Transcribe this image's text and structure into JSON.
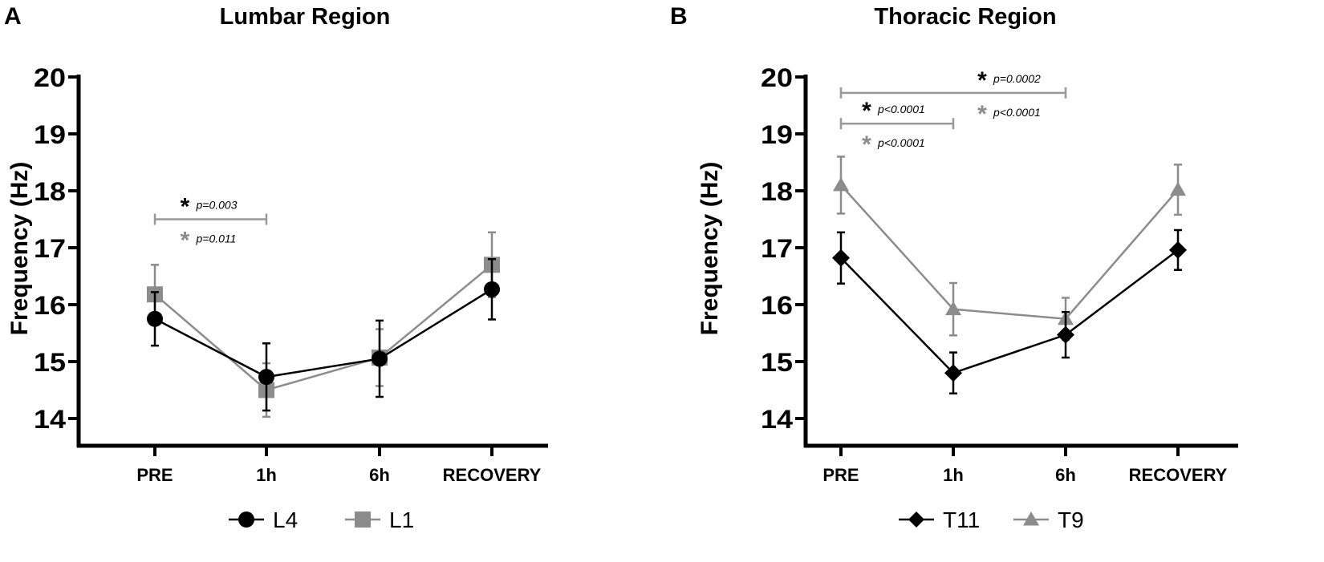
{
  "colors": {
    "black": "#000000",
    "gray": "#8c8c8c"
  },
  "chart_data": [
    {
      "type": "line",
      "panel_letter": "A",
      "title": "Lumbar Region",
      "xlabel": "",
      "ylabel": "Frequency (Hz)",
      "categories": [
        "PRE",
        "1h",
        "6h",
        "RECOVERY"
      ],
      "ylim": [
        14,
        20
      ],
      "yticks": [
        "14",
        "15",
        "16",
        "17",
        "18",
        "19",
        "20"
      ],
      "grid": false,
      "legend_position": "bottom",
      "series": [
        {
          "name": "L4",
          "marker": "circle",
          "color": "#000000",
          "values": [
            15.75,
            14.73,
            15.05,
            16.27
          ],
          "errors": [
            0.47,
            0.59,
            0.67,
            0.53
          ]
        },
        {
          "name": "L1",
          "marker": "square",
          "color": "#8c8c8c",
          "values": [
            16.18,
            14.5,
            15.07,
            16.7
          ],
          "errors": [
            0.52,
            0.47,
            0.5,
            0.57
          ]
        }
      ],
      "annotations": [
        {
          "from": "PRE",
          "to": "1h",
          "y": 17.5,
          "labels": [
            {
              "star_color": "#000000",
              "text": "p=0.003"
            },
            {
              "star_color": "#8c8c8c",
              "text": "p=0.011"
            }
          ]
        }
      ]
    },
    {
      "type": "line",
      "panel_letter": "B",
      "title": "Thoracic Region",
      "xlabel": "",
      "ylabel": "Frequency (Hz)",
      "categories": [
        "PRE",
        "1h",
        "6h",
        "RECOVERY"
      ],
      "ylim": [
        14,
        20
      ],
      "yticks": [
        "14",
        "15",
        "16",
        "17",
        "18",
        "19",
        "20"
      ],
      "grid": false,
      "legend_position": "bottom",
      "series": [
        {
          "name": "T11",
          "marker": "diamond",
          "color": "#000000",
          "values": [
            16.82,
            14.8,
            15.47,
            16.96
          ],
          "errors": [
            0.45,
            0.36,
            0.4,
            0.35
          ]
        },
        {
          "name": "T9",
          "marker": "triangle",
          "color": "#8c8c8c",
          "values": [
            18.1,
            15.92,
            15.75,
            18.02
          ],
          "errors": [
            0.5,
            0.46,
            0.37,
            0.44
          ]
        }
      ],
      "annotations": [
        {
          "from": "PRE",
          "to": "6h",
          "y": 19.72,
          "labels": [
            {
              "star_color": "#000000",
              "text": "p=0.0002"
            },
            {
              "star_color": "#8c8c8c",
              "text": "p<0.0001"
            }
          ]
        },
        {
          "from": "PRE",
          "to": "1h",
          "y": 19.18,
          "labels": [
            {
              "star_color": "#000000",
              "text": "p<0.0001"
            },
            {
              "star_color": "#8c8c8c",
              "text": "p<0.0001"
            }
          ]
        }
      ]
    }
  ]
}
